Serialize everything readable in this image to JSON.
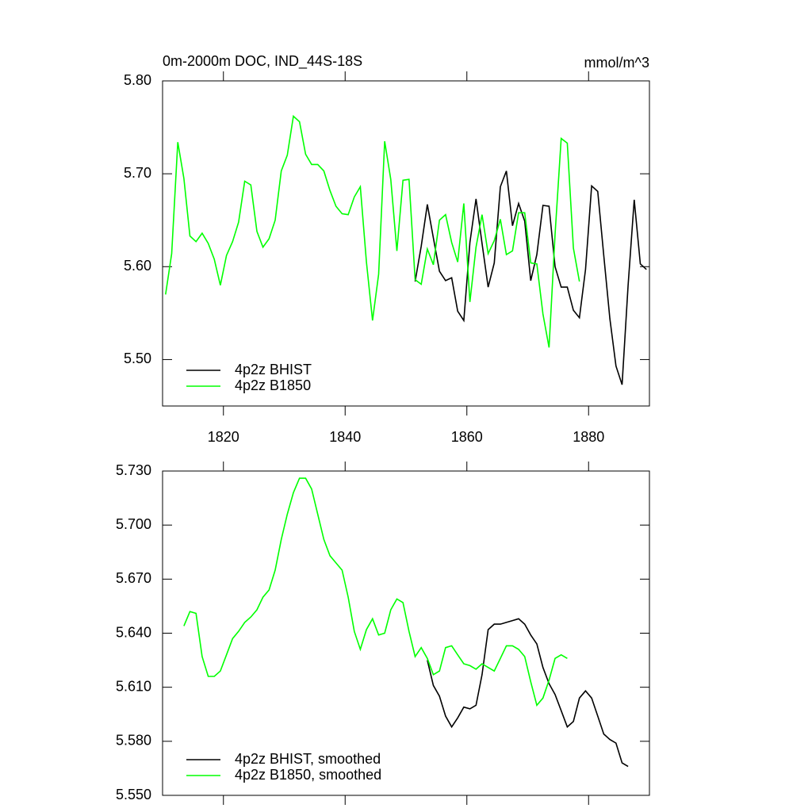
{
  "chart_data": [
    {
      "type": "line",
      "title": "0m-2000m DOC, IND_44S-18S",
      "units": "mmol/m^3",
      "x": [
        1810.5,
        1811.5,
        1812.5,
        1813.5,
        1814.5,
        1815.5,
        1816.5,
        1817.5,
        1818.5,
        1819.5,
        1820.5,
        1821.5,
        1822.5,
        1823.5,
        1824.5,
        1825.5,
        1826.5,
        1827.5,
        1828.5,
        1829.5,
        1830.5,
        1831.5,
        1832.5,
        1833.5,
        1834.5,
        1835.5,
        1836.5,
        1837.5,
        1838.5,
        1839.5,
        1840.5,
        1841.5,
        1842.5,
        1843.5,
        1844.5,
        1845.5,
        1846.5,
        1847.5,
        1848.5,
        1849.5,
        1850.5,
        1851.5,
        1852.5,
        1853.5,
        1854.5,
        1855.5,
        1856.5,
        1857.5,
        1858.5,
        1859.5,
        1860.5,
        1861.5,
        1862.5,
        1863.5,
        1864.5,
        1865.5,
        1866.5,
        1867.5,
        1868.5,
        1869.5,
        1870.5,
        1871.5,
        1872.5,
        1873.5,
        1874.5,
        1875.5,
        1876.5,
        1877.5,
        1878.5,
        1879.5,
        1880.5,
        1881.5,
        1882.5,
        1883.5,
        1884.5,
        1885.5,
        1886.5,
        1887.5,
        1888.5,
        1889.5
      ],
      "series": [
        {
          "name": "4p2z BHIST",
          "color": "#000000",
          "values": [
            null,
            null,
            null,
            null,
            null,
            null,
            null,
            null,
            null,
            null,
            null,
            null,
            null,
            null,
            null,
            null,
            null,
            null,
            null,
            null,
            null,
            null,
            null,
            null,
            null,
            null,
            null,
            null,
            null,
            null,
            null,
            null,
            null,
            null,
            null,
            null,
            null,
            null,
            null,
            null,
            null,
            5.584,
            5.622,
            5.667,
            5.631,
            5.595,
            5.585,
            5.588,
            5.552,
            5.542,
            5.626,
            5.673,
            5.625,
            5.578,
            5.604,
            5.686,
            5.703,
            5.644,
            5.668,
            5.649,
            5.585,
            5.613,
            5.666,
            5.665,
            5.6,
            5.578,
            5.578,
            5.553,
            5.545,
            5.597,
            5.687,
            5.681,
            5.612,
            5.544,
            5.493,
            5.473,
            5.58,
            5.672,
            5.603,
            5.597
          ]
        },
        {
          "name": "4p2z B1850",
          "color": "#00ff00",
          "values": [
            5.57,
            5.614,
            5.734,
            5.695,
            5.633,
            5.627,
            5.636,
            5.625,
            5.608,
            5.58,
            5.612,
            5.627,
            5.648,
            5.692,
            5.688,
            5.638,
            5.621,
            5.63,
            5.65,
            5.703,
            5.72,
            5.762,
            5.756,
            5.721,
            5.71,
            5.71,
            5.703,
            5.682,
            5.665,
            5.657,
            5.656,
            5.675,
            5.686,
            5.605,
            5.542,
            5.592,
            5.735,
            5.694,
            5.617,
            5.693,
            5.694,
            5.586,
            5.581,
            5.619,
            5.602,
            5.65,
            5.656,
            5.626,
            5.605,
            5.668,
            5.562,
            5.621,
            5.656,
            5.614,
            5.628,
            5.651,
            5.613,
            5.617,
            5.658,
            5.658,
            5.604,
            5.603,
            5.549,
            5.513,
            5.635,
            5.738,
            5.733,
            5.62,
            5.584,
            null,
            null,
            null,
            null,
            null,
            null,
            null,
            null,
            null,
            null,
            null
          ]
        }
      ],
      "xlim": [
        1810,
        1890
      ],
      "xticks": [
        1820,
        1840,
        1860,
        1880
      ],
      "xtick_labels": true,
      "ylim": [
        5.45,
        5.8
      ],
      "yticks": [
        {
          "value": 5.5,
          "label": "5.50"
        },
        {
          "value": 5.6,
          "label": "5.60"
        },
        {
          "value": 5.7,
          "label": "5.70"
        },
        {
          "value": 5.8,
          "label": "5.80"
        }
      ]
    },
    {
      "type": "line",
      "x": [
        1810.5,
        1811.5,
        1812.5,
        1813.5,
        1814.5,
        1815.5,
        1816.5,
        1817.5,
        1818.5,
        1819.5,
        1820.5,
        1821.5,
        1822.5,
        1823.5,
        1824.5,
        1825.5,
        1826.5,
        1827.5,
        1828.5,
        1829.5,
        1830.5,
        1831.5,
        1832.5,
        1833.5,
        1834.5,
        1835.5,
        1836.5,
        1837.5,
        1838.5,
        1839.5,
        1840.5,
        1841.5,
        1842.5,
        1843.5,
        1844.5,
        1845.5,
        1846.5,
        1847.5,
        1848.5,
        1849.5,
        1850.5,
        1851.5,
        1852.5,
        1853.5,
        1854.5,
        1855.5,
        1856.5,
        1857.5,
        1858.5,
        1859.5,
        1860.5,
        1861.5,
        1862.5,
        1863.5,
        1864.5,
        1865.5,
        1866.5,
        1867.5,
        1868.5,
        1869.5,
        1870.5,
        1871.5,
        1872.5,
        1873.5,
        1874.5,
        1875.5,
        1876.5,
        1877.5,
        1878.5,
        1879.5,
        1880.5,
        1881.5,
        1882.5,
        1883.5,
        1884.5,
        1885.5,
        1886.5,
        1887.5,
        1888.5,
        1889.5
      ],
      "series": [
        {
          "name": "4p2z BHIST, smoothed",
          "color": "#000000",
          "values": [
            null,
            null,
            null,
            null,
            null,
            null,
            null,
            null,
            null,
            null,
            null,
            null,
            null,
            null,
            null,
            null,
            null,
            null,
            null,
            null,
            null,
            null,
            null,
            null,
            null,
            null,
            null,
            null,
            null,
            null,
            null,
            null,
            null,
            null,
            null,
            null,
            null,
            null,
            null,
            null,
            null,
            null,
            null,
            5.625,
            5.611,
            5.605,
            5.594,
            5.588,
            5.593,
            5.599,
            5.598,
            5.6,
            5.617,
            5.642,
            5.645,
            5.645,
            5.646,
            5.647,
            5.648,
            5.645,
            5.639,
            5.634,
            5.621,
            5.612,
            5.606,
            5.597,
            5.588,
            5.591,
            5.604,
            5.608,
            5.604,
            5.594,
            5.584,
            5.581,
            5.579,
            5.568,
            5.566,
            null,
            null,
            null
          ]
        },
        {
          "name": "4p2z B1850, smoothed",
          "color": "#00ff00",
          "values": [
            null,
            null,
            null,
            5.644,
            5.652,
            5.651,
            5.627,
            5.616,
            5.616,
            5.619,
            5.628,
            5.637,
            5.641,
            5.646,
            5.649,
            5.653,
            5.66,
            5.664,
            5.675,
            5.692,
            5.706,
            5.718,
            5.726,
            5.726,
            5.72,
            5.706,
            5.692,
            5.683,
            5.679,
            5.675,
            5.66,
            5.641,
            5.631,
            5.642,
            5.648,
            5.639,
            5.64,
            5.653,
            5.659,
            5.657,
            5.641,
            5.627,
            5.632,
            5.626,
            5.617,
            5.619,
            5.632,
            5.633,
            5.628,
            5.623,
            5.622,
            5.62,
            5.623,
            5.621,
            5.619,
            5.626,
            5.633,
            5.633,
            5.631,
            5.627,
            5.613,
            5.6,
            5.604,
            5.614,
            5.626,
            5.628,
            5.626,
            null,
            null,
            null,
            null,
            null,
            null,
            null,
            null,
            null,
            null,
            null,
            null,
            null
          ]
        }
      ],
      "xlim": [
        1810,
        1890
      ],
      "xticks": [
        1820,
        1840,
        1860,
        1880
      ],
      "xtick_labels": false,
      "ylim": [
        5.55,
        5.73
      ],
      "yticks": [
        {
          "value": 5.55,
          "label": "5.550"
        },
        {
          "value": 5.58,
          "label": "5.580"
        },
        {
          "value": 5.61,
          "label": "5.610"
        },
        {
          "value": 5.64,
          "label": "5.640"
        },
        {
          "value": 5.67,
          "label": "5.670"
        },
        {
          "value": 5.7,
          "label": "5.700"
        },
        {
          "value": 5.73,
          "label": "5.730"
        }
      ]
    }
  ]
}
